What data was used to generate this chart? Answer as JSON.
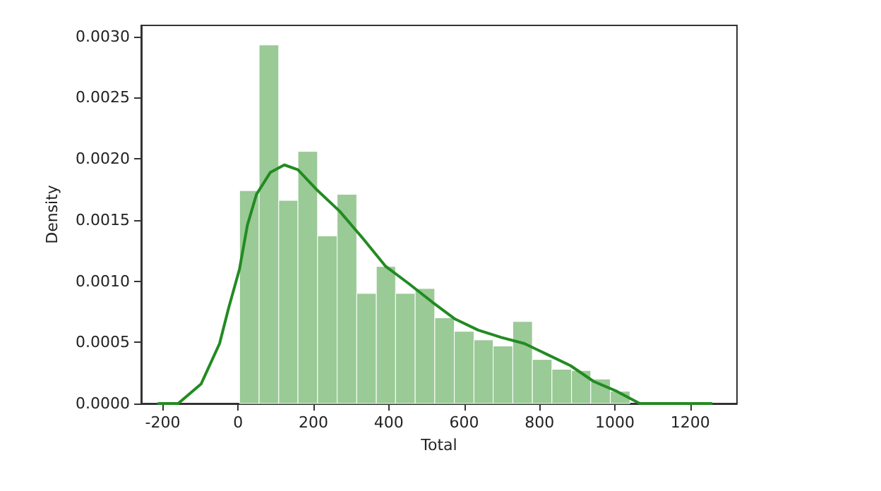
{
  "chart_data": {
    "type": "histogram",
    "xlabel": "Total",
    "ylabel": "Density",
    "xlim": [
      -257,
      1324
    ],
    "ylim": [
      0,
      0.00309
    ],
    "xticks": [
      -200,
      0,
      200,
      400,
      600,
      800,
      1000,
      1200
    ],
    "yticks": [
      {
        "value": 0,
        "label": "0.0000"
      },
      {
        "value": 0.0005,
        "label": "0.0005"
      },
      {
        "value": 0.001,
        "label": "0.0010"
      },
      {
        "value": 0.0015,
        "label": "0.0015"
      },
      {
        "value": 0.002,
        "label": "0.0020"
      },
      {
        "value": 0.0025,
        "label": "0.0025"
      },
      {
        "value": 0.003,
        "label": "0.0030"
      }
    ],
    "grid": false,
    "series": [
      {
        "color": "#9aca96",
        "bins": [
          4,
          56,
          108,
          159,
          211,
          263,
          315,
          367,
          418,
          470,
          522,
          574,
          626,
          677,
          729,
          781,
          833,
          885,
          936,
          988,
          1040
        ],
        "values": [
          0.00174,
          0.00293,
          0.00166,
          0.00206,
          0.00137,
          0.00171,
          0.0009,
          0.00112,
          0.0009,
          0.00094,
          0.0007,
          0.00059,
          0.00052,
          0.00047,
          0.00067,
          0.00036,
          0.00028,
          0.00027,
          0.0002,
          0.0001
        ]
      },
      {
        "type": "line",
        "color": "#228b22",
        "x": [
          -211,
          -159,
          -98,
          -49,
          -25,
          4,
          25,
          49,
          86,
          123,
          159,
          208,
          270,
          331,
          392,
          453,
          515,
          576,
          637,
          699,
          760,
          821,
          882,
          944,
          1005,
          1066,
          1127,
          1256
        ],
        "values": [
          0,
          0,
          0.00016,
          0.00049,
          0.00078,
          0.0011,
          0.00146,
          0.00171,
          0.00189,
          0.00195,
          0.00191,
          0.00175,
          0.00157,
          0.00135,
          0.00112,
          0.00098,
          0.00083,
          0.00069,
          0.0006,
          0.00054,
          0.00049,
          0.0004,
          0.00031,
          0.00018,
          0.0001,
          0,
          0,
          0
        ]
      }
    ]
  }
}
